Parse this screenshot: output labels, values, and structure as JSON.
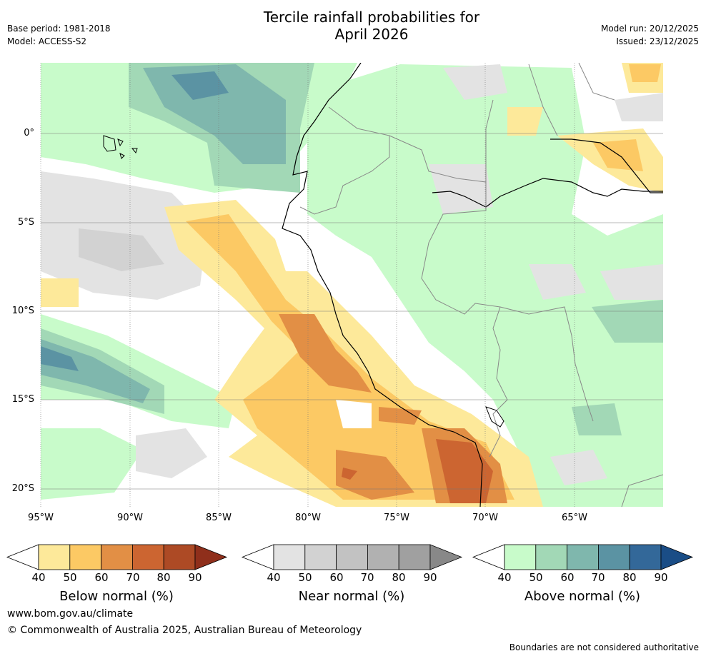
{
  "title": "Tercile rainfall probabilities for April 2026",
  "title_line1": "Tercile rainfall probabilities for",
  "title_line2": "April 2026",
  "header_left": {
    "base_period": "Base period: 1981-2018",
    "model": "Model: ACCESS-S2"
  },
  "header_right": {
    "model_run": "Model run: 20/12/2025",
    "issued": "Issued: 23/12/2025"
  },
  "map": {
    "lat_labels": [
      "0°",
      "5°S",
      "10°S",
      "15°S",
      "20°S"
    ],
    "lon_labels": [
      "95°W",
      "90°W",
      "85°W",
      "80°W",
      "75°W",
      "70°W",
      "65°W"
    ]
  },
  "colorbars": {
    "below": {
      "title": "Below normal (%)",
      "ticks": [
        "40",
        "50",
        "60",
        "70",
        "80",
        "90"
      ],
      "colors": [
        "#ffffff",
        "#fde99a",
        "#fcc964",
        "#e28f45",
        "#cc6531",
        "#ad4a25",
        "#8f2f1b"
      ]
    },
    "near": {
      "title": "Near normal (%)",
      "ticks": [
        "40",
        "50",
        "60",
        "70",
        "80",
        "90"
      ],
      "colors": [
        "#ffffff",
        "#e3e3e3",
        "#d2d2d2",
        "#c2c2c2",
        "#b1b1b1",
        "#a0a0a0",
        "#888888"
      ]
    },
    "above": {
      "title": "Above normal (%)",
      "ticks": [
        "40",
        "50",
        "60",
        "70",
        "80",
        "90"
      ],
      "colors": [
        "#ffffff",
        "#c8fbca",
        "#a2d8b6",
        "#7fb7ad",
        "#5b93a3",
        "#336899",
        "#1a4d86"
      ]
    }
  },
  "footer": {
    "website": "www.bom.gov.au/climate",
    "copyright": "© Commonwealth of Australia 2025, Australian Bureau of Meteorology",
    "disclaimer": "Boundaries are not considered authoritative"
  }
}
